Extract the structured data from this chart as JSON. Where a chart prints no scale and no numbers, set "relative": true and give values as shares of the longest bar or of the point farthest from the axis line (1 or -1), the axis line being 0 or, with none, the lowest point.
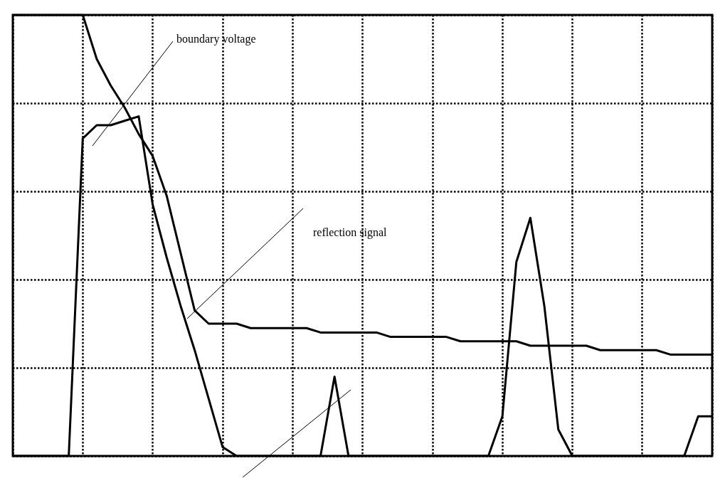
{
  "chart_data": {
    "type": "line",
    "relative": true,
    "grid": true,
    "marker": "none",
    "line_style": "solid",
    "categories": [
      null,
      null,
      null,
      null,
      null,
      null,
      null,
      null,
      null,
      null,
      null,
      null,
      null,
      null,
      null,
      null,
      null,
      null,
      null,
      null,
      null,
      null,
      null,
      null,
      null,
      null,
      null,
      null,
      null,
      null,
      null,
      null,
      null,
      null,
      null,
      null,
      null,
      null,
      null,
      null,
      null,
      null,
      null,
      null,
      null,
      null,
      null,
      null,
      null,
      null,
      null
    ],
    "annotations": [
      "boundary voltage",
      "reflection signal"
    ],
    "series": [
      {
        "color": "#000000",
        "values": [
          1,
          1,
          1,
          1,
          1,
          1,
          0.9,
          0.84,
          0.79,
          0.73,
          0.68,
          0.59,
          0.46,
          0.33,
          0.3,
          0.3,
          0.3,
          0.29,
          0.29,
          0.29,
          0.29,
          0.29,
          0.28,
          0.28,
          0.28,
          0.28,
          0.28,
          0.27,
          0.27,
          0.27,
          0.27,
          0.27,
          0.26,
          0.26,
          0.26,
          0.26,
          0.26,
          0.25,
          0.25,
          0.25,
          0.25,
          0.25,
          0.24,
          0.24,
          0.24,
          0.24,
          0.24,
          0.23,
          0.23,
          0.23,
          0.23
        ]
      },
      {
        "color": "#000000",
        "values": [
          0,
          0,
          0,
          0,
          0,
          0.72,
          0.75,
          0.75,
          0.76,
          0.77,
          0.57,
          0.45,
          0.34,
          0.24,
          0.13,
          0.02,
          0,
          0,
          0,
          0,
          0,
          0,
          0,
          0.18,
          0,
          0,
          0,
          0,
          0,
          0,
          0,
          0,
          0,
          0,
          0,
          0.09,
          0.44,
          0.54,
          0.34,
          0.06,
          0,
          0,
          0,
          0,
          0,
          0,
          0,
          0,
          0,
          0.09,
          0.09
        ]
      }
    ]
  }
}
